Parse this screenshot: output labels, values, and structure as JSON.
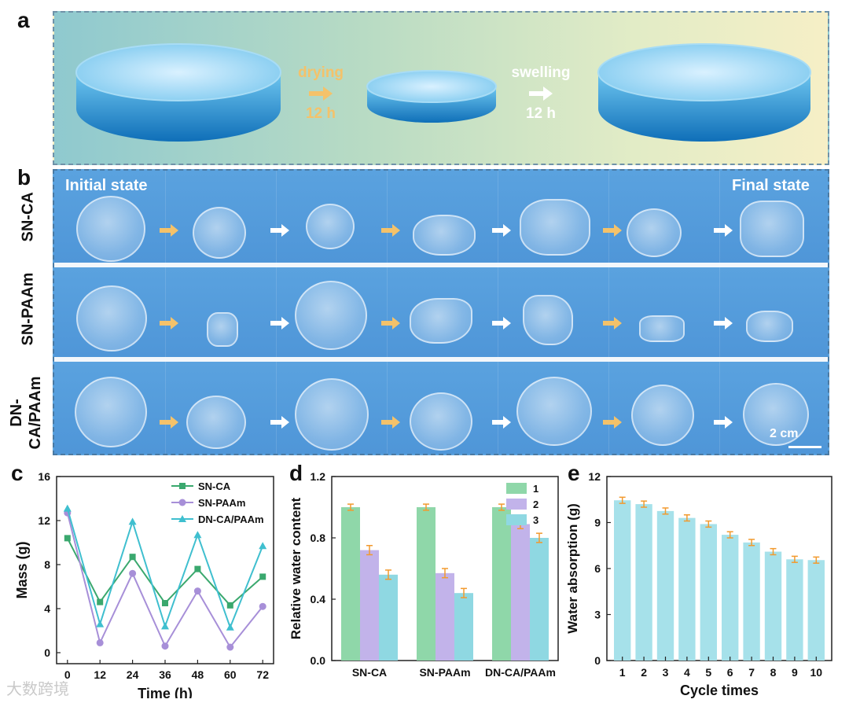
{
  "panel_labels": {
    "a": "a",
    "b": "b",
    "c": "c",
    "d": "d",
    "e": "e"
  },
  "panel_a": {
    "step1_word": "drying",
    "step1_time": "12 h",
    "step2_word": "swelling",
    "step2_time": "12 h",
    "colors": {
      "drying": "#f4c26a",
      "swelling": "#ffffff"
    }
  },
  "panel_b": {
    "initial_label": "Initial state",
    "final_label": "Final state",
    "rows": [
      {
        "label": "SN-CA"
      },
      {
        "label": "SN-PAAm"
      },
      {
        "label_line1": "DN-",
        "label_line2": "CA/PAAm"
      }
    ],
    "scale_bar": "2 cm"
  },
  "watermark": "大数跨境",
  "chart_data": [
    {
      "type": "line",
      "panel": "c",
      "xlabel": "Time (h)",
      "ylabel": "Mass (g)",
      "x": [
        0,
        12,
        24,
        36,
        48,
        60,
        72
      ],
      "x_ticks": [
        "0",
        "12",
        "24",
        "36",
        "48",
        "60",
        "72"
      ],
      "y_ticks": [
        "0",
        "4",
        "8",
        "12",
        "16"
      ],
      "ylim": [
        -1,
        16
      ],
      "series": [
        {
          "name": "SN-CA",
          "marker": "square",
          "color": "#3aa86e",
          "values": [
            10.4,
            4.6,
            8.7,
            4.5,
            7.6,
            4.3,
            6.9
          ]
        },
        {
          "name": "SN-PAAm",
          "marker": "circle",
          "color": "#a78fd8",
          "values": [
            12.7,
            0.9,
            7.2,
            0.6,
            5.6,
            0.5,
            4.2
          ]
        },
        {
          "name": "DN-CA/PAAm",
          "marker": "triangle",
          "color": "#3fbfcf",
          "values": [
            13.1,
            2.6,
            11.9,
            2.4,
            10.7,
            2.3,
            9.7
          ]
        }
      ],
      "legend": "top-right"
    },
    {
      "type": "bar",
      "panel": "d",
      "ylabel": "Relative water content",
      "categories": [
        "SN-CA",
        "SN-PAAm",
        "DN-CA/PAAm"
      ],
      "y_ticks": [
        "0.0",
        "0.4",
        "0.8",
        "1.2"
      ],
      "ylim": [
        0,
        1.2
      ],
      "series": [
        {
          "name": "1",
          "color": "#8fd7a9",
          "values": [
            1.0,
            1.0,
            1.0
          ],
          "errors": [
            0.02,
            0.02,
            0.02
          ]
        },
        {
          "name": "2",
          "color": "#c2b3ea",
          "values": [
            0.72,
            0.57,
            0.89
          ],
          "errors": [
            0.03,
            0.03,
            0.03
          ]
        },
        {
          "name": "3",
          "color": "#8fd8e2",
          "values": [
            0.56,
            0.44,
            0.8
          ],
          "errors": [
            0.03,
            0.03,
            0.03
          ]
        }
      ],
      "error_color": "#f29a2e",
      "legend": "top-right"
    },
    {
      "type": "bar",
      "panel": "e",
      "xlabel": "Cycle times",
      "ylabel": "Water absorption (g)",
      "categories": [
        "1",
        "2",
        "3",
        "4",
        "5",
        "6",
        "7",
        "8",
        "9",
        "10"
      ],
      "y_ticks": [
        "0",
        "3",
        "6",
        "9",
        "12"
      ],
      "ylim": [
        0,
        12
      ],
      "values": [
        10.45,
        10.2,
        9.75,
        9.3,
        8.9,
        8.2,
        7.7,
        7.1,
        6.6,
        6.55
      ],
      "errors": [
        0.2,
        0.2,
        0.2,
        0.2,
        0.2,
        0.2,
        0.2,
        0.2,
        0.2,
        0.2
      ],
      "bar_color": "#a6e1ea",
      "error_color": "#f29a2e"
    }
  ]
}
